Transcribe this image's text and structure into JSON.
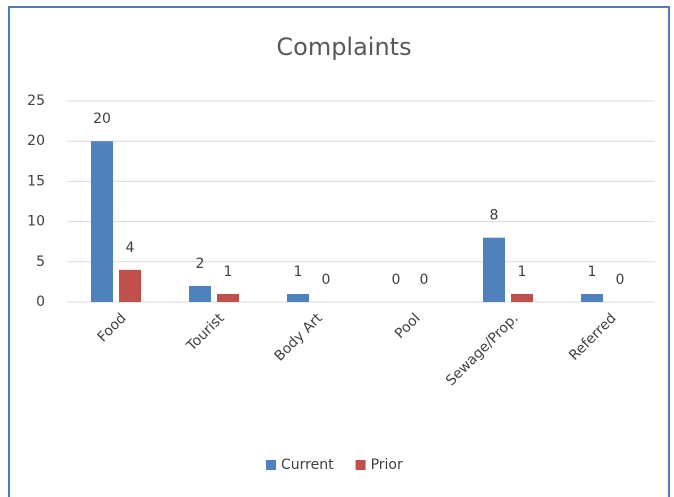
{
  "chart_data": {
    "type": "bar",
    "title": "Complaints",
    "categories": [
      "Food",
      "Tourist",
      "Body Art",
      "Pool",
      "Sewage/Prop.",
      "Referred"
    ],
    "series": [
      {
        "name": "Current",
        "color": "#4f81bd",
        "values": [
          20,
          2,
          1,
          0,
          8,
          1
        ]
      },
      {
        "name": "Prior",
        "color": "#c0504d",
        "values": [
          4,
          1,
          0,
          0,
          1,
          0
        ]
      }
    ],
    "ylim": [
      0,
      25
    ],
    "yticks": [
      0,
      5,
      10,
      15,
      20,
      25
    ],
    "grid": true,
    "legend": "bottom"
  }
}
